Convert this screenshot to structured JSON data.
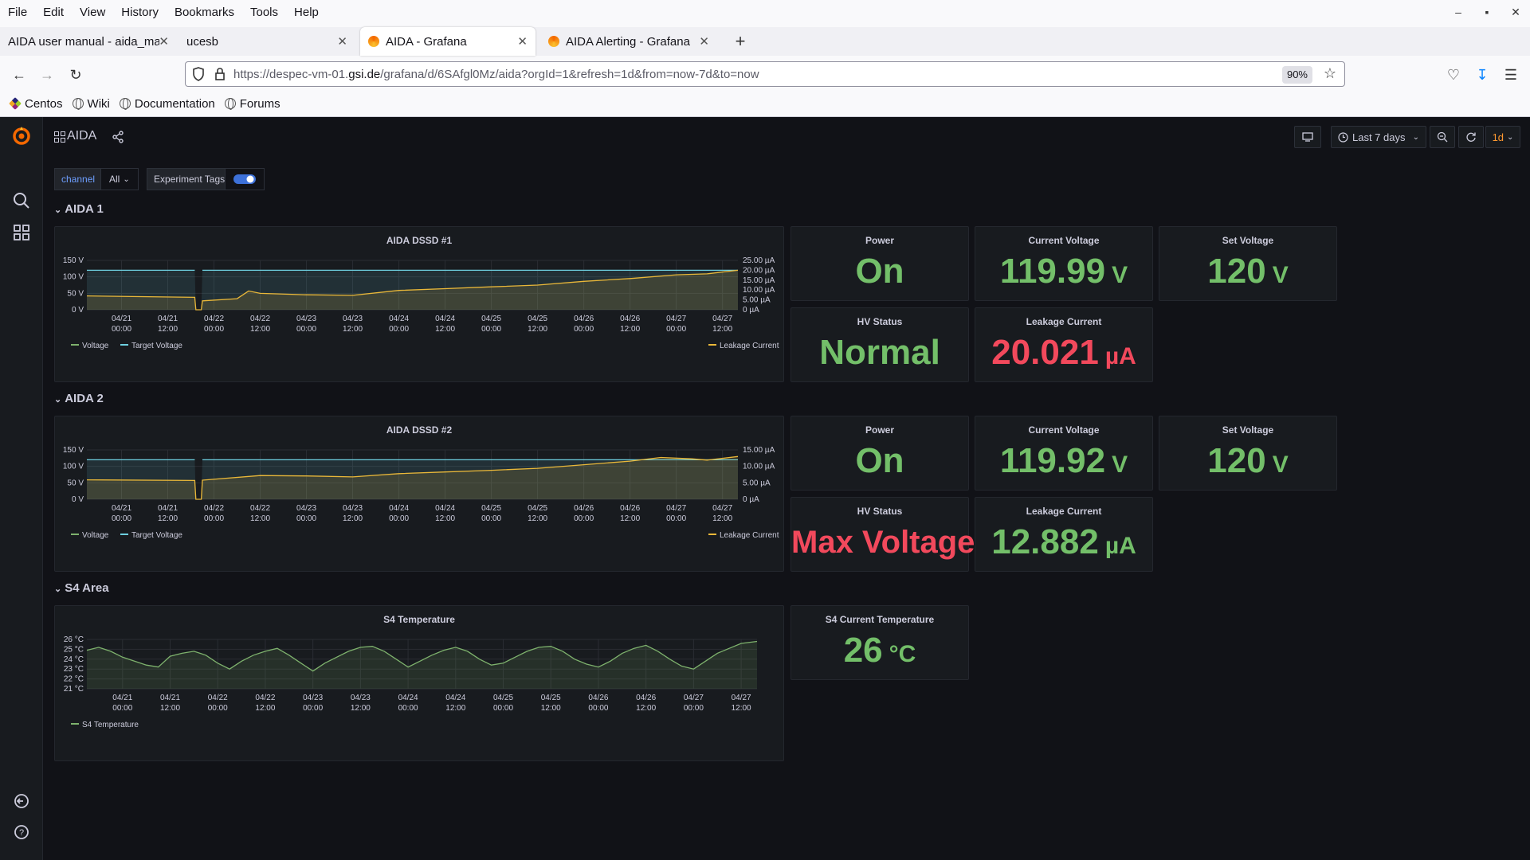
{
  "browser": {
    "menu": [
      "File",
      "Edit",
      "View",
      "History",
      "Bookmarks",
      "Tools",
      "Help"
    ],
    "tabs": [
      {
        "title": "AIDA user manual - aida_man",
        "active": false,
        "favicon": false
      },
      {
        "title": "ucesb",
        "active": false,
        "favicon": false
      },
      {
        "title": "AIDA - Grafana",
        "active": true,
        "favicon": true
      },
      {
        "title": "AIDA Alerting - Grafana",
        "active": false,
        "favicon": true
      }
    ],
    "url_prefix": "https://despec-vm-01.",
    "url_domain": "gsi.de",
    "url_suffix": "/grafana/d/6SAfgl0Mz/aida?orgId=1&refresh=1d&from=now-7d&to=now",
    "zoom": "90%",
    "bookmarks": [
      "Centos",
      "Wiki",
      "Documentation",
      "Forums"
    ]
  },
  "grafana": {
    "dashboard_title": "AIDA",
    "time_range": "Last 7 days",
    "refresh": "1d",
    "variables": {
      "channel_label": "channel",
      "channel_value": "All",
      "tags_label": "Experiment Tags",
      "tags_on": true
    },
    "colors": {
      "green": "#73bf69",
      "red": "#f2495c",
      "voltage": "#7eb26d",
      "target": "#6ed0e0",
      "leakage": "#eab839"
    },
    "rows": [
      {
        "title": "AIDA 1"
      },
      {
        "title": "AIDA 2"
      },
      {
        "title": "S4 Area"
      }
    ],
    "stats": {
      "aida1": {
        "power": {
          "title": "Power",
          "value": "On",
          "unit": "",
          "color": "green"
        },
        "current_voltage": {
          "title": "Current Voltage",
          "value": "119.99",
          "unit": "V",
          "color": "green"
        },
        "set_voltage": {
          "title": "Set Voltage",
          "value": "120",
          "unit": "V",
          "color": "green"
        },
        "hv_status": {
          "title": "HV Status",
          "value": "Normal",
          "unit": "",
          "color": "green"
        },
        "leakage": {
          "title": "Leakage Current",
          "value": "20.021",
          "unit": "µA",
          "color": "red"
        }
      },
      "aida2": {
        "power": {
          "title": "Power",
          "value": "On",
          "unit": "",
          "color": "green"
        },
        "current_voltage": {
          "title": "Current Voltage",
          "value": "119.92",
          "unit": "V",
          "color": "green"
        },
        "set_voltage": {
          "title": "Set Voltage",
          "value": "120",
          "unit": "V",
          "color": "green"
        },
        "hv_status": {
          "title": "HV Status",
          "value": "Max Voltage",
          "unit": "",
          "color": "red"
        },
        "leakage": {
          "title": "Leakage Current",
          "value": "12.882",
          "unit": "µA",
          "color": "green"
        }
      },
      "s4": {
        "temperature": {
          "title": "S4 Current Temperature",
          "value": "26",
          "unit": "°C",
          "color": "green"
        }
      }
    }
  },
  "chart_data": [
    {
      "id": "dssd1",
      "type": "line",
      "title": "AIDA DSSD #1",
      "x_ticks": [
        [
          "04/21",
          "00:00"
        ],
        [
          "04/21",
          "12:00"
        ],
        [
          "04/22",
          "00:00"
        ],
        [
          "04/22",
          "12:00"
        ],
        [
          "04/23",
          "00:00"
        ],
        [
          "04/23",
          "12:00"
        ],
        [
          "04/24",
          "00:00"
        ],
        [
          "04/24",
          "12:00"
        ],
        [
          "04/25",
          "00:00"
        ],
        [
          "04/25",
          "12:00"
        ],
        [
          "04/26",
          "00:00"
        ],
        [
          "04/26",
          "12:00"
        ],
        [
          "04/27",
          "00:00"
        ],
        [
          "04/27",
          "12:00"
        ]
      ],
      "x_range_hours": [
        -9,
        160
      ],
      "y_left_ticks": [
        "0 V",
        "50 V",
        "100 V",
        "150 V"
      ],
      "y_left_range": [
        0,
        150
      ],
      "y_right_ticks": [
        "0 µA",
        "5.00 µA",
        "10.00 µA",
        "15.00 µA",
        "20.00 µA",
        "25.00 µA"
      ],
      "y_right_range": [
        0,
        25
      ],
      "legend_left": [
        "Voltage",
        "Target Voltage"
      ],
      "legend_right": [
        "Leakage Current"
      ],
      "target_segments": [
        [
          [
            -9,
            120
          ],
          [
            19,
            120
          ]
        ],
        [
          [
            21,
            120
          ],
          [
            160,
            120
          ]
        ]
      ],
      "voltage": [
        [
          -9,
          120
        ],
        [
          19,
          120
        ],
        [
          19.3,
          0
        ],
        [
          20.7,
          0
        ],
        [
          21,
          120
        ],
        [
          160,
          120
        ]
      ],
      "leakage": [
        [
          -9,
          7.0
        ],
        [
          19,
          6.3
        ],
        [
          19.3,
          0
        ],
        [
          20.7,
          0
        ],
        [
          21,
          4.5
        ],
        [
          30,
          5.6
        ],
        [
          33,
          9.5
        ],
        [
          36,
          8.3
        ],
        [
          48,
          7.6
        ],
        [
          60,
          7.3
        ],
        [
          72,
          9.8
        ],
        [
          84,
          10.7
        ],
        [
          96,
          11.6
        ],
        [
          108,
          12.5
        ],
        [
          120,
          14.4
        ],
        [
          132,
          15.8
        ],
        [
          144,
          17.7
        ],
        [
          152,
          18.2
        ],
        [
          160,
          20.0
        ]
      ]
    },
    {
      "id": "dssd2",
      "type": "line",
      "title": "AIDA DSSD #2",
      "x_ticks": [
        [
          "04/21",
          "00:00"
        ],
        [
          "04/21",
          "12:00"
        ],
        [
          "04/22",
          "00:00"
        ],
        [
          "04/22",
          "12:00"
        ],
        [
          "04/23",
          "00:00"
        ],
        [
          "04/23",
          "12:00"
        ],
        [
          "04/24",
          "00:00"
        ],
        [
          "04/24",
          "12:00"
        ],
        [
          "04/25",
          "00:00"
        ],
        [
          "04/25",
          "12:00"
        ],
        [
          "04/26",
          "00:00"
        ],
        [
          "04/26",
          "12:00"
        ],
        [
          "04/27",
          "00:00"
        ],
        [
          "04/27",
          "12:00"
        ]
      ],
      "x_range_hours": [
        -9,
        160
      ],
      "y_left_ticks": [
        "0 V",
        "50 V",
        "100 V",
        "150 V"
      ],
      "y_left_range": [
        0,
        150
      ],
      "y_right_ticks": [
        "0 µA",
        "5.00 µA",
        "10.00 µA",
        "15.00 µA"
      ],
      "y_right_range": [
        0,
        15
      ],
      "legend_left": [
        "Voltage",
        "Target Voltage"
      ],
      "legend_right": [
        "Leakage Current"
      ],
      "target_segments": [
        [
          [
            -9,
            120
          ],
          [
            19,
            120
          ]
        ],
        [
          [
            21,
            120
          ],
          [
            160,
            120
          ]
        ]
      ],
      "voltage": [
        [
          -9,
          120
        ],
        [
          19,
          120
        ],
        [
          19.3,
          0
        ],
        [
          20.7,
          0
        ],
        [
          21,
          120
        ],
        [
          160,
          120
        ]
      ],
      "leakage": [
        [
          -9,
          5.9
        ],
        [
          19,
          5.7
        ],
        [
          19.3,
          0
        ],
        [
          20.7,
          0
        ],
        [
          21,
          5.8
        ],
        [
          36,
          7.2
        ],
        [
          48,
          7.1
        ],
        [
          60,
          6.8
        ],
        [
          72,
          7.8
        ],
        [
          84,
          8.3
        ],
        [
          96,
          8.8
        ],
        [
          108,
          9.4
        ],
        [
          120,
          10.5
        ],
        [
          132,
          11.6
        ],
        [
          140,
          12.7
        ],
        [
          148,
          12.3
        ],
        [
          152,
          11.9
        ],
        [
          160,
          13.0
        ]
      ]
    },
    {
      "id": "s4",
      "type": "line",
      "title": "S4 Temperature",
      "x_ticks": [
        [
          "04/21",
          "00:00"
        ],
        [
          "04/21",
          "12:00"
        ],
        [
          "04/22",
          "00:00"
        ],
        [
          "04/22",
          "12:00"
        ],
        [
          "04/23",
          "00:00"
        ],
        [
          "04/23",
          "12:00"
        ],
        [
          "04/24",
          "00:00"
        ],
        [
          "04/24",
          "12:00"
        ],
        [
          "04/25",
          "00:00"
        ],
        [
          "04/25",
          "12:00"
        ],
        [
          "04/26",
          "00:00"
        ],
        [
          "04/26",
          "12:00"
        ],
        [
          "04/27",
          "00:00"
        ],
        [
          "04/27",
          "12:00"
        ]
      ],
      "x_range_hours": [
        -9,
        160
      ],
      "y_ticks": [
        "21 °C",
        "22 °C",
        "23 °C",
        "24 °C",
        "25 °C",
        "26 °C"
      ],
      "y_range": [
        21,
        26
      ],
      "legend": [
        "S4 Temperature"
      ],
      "temperature": [
        [
          -9,
          24.9
        ],
        [
          -6,
          25.2
        ],
        [
          -3,
          24.8
        ],
        [
          0,
          24.2
        ],
        [
          3,
          23.8
        ],
        [
          6,
          23.4
        ],
        [
          9,
          23.2
        ],
        [
          12,
          24.3
        ],
        [
          15,
          24.6
        ],
        [
          18,
          24.8
        ],
        [
          21,
          24.4
        ],
        [
          24,
          23.6
        ],
        [
          27,
          23.0
        ],
        [
          30,
          23.8
        ],
        [
          33,
          24.4
        ],
        [
          36,
          24.8
        ],
        [
          39,
          25.1
        ],
        [
          42,
          24.4
        ],
        [
          45,
          23.6
        ],
        [
          48,
          22.8
        ],
        [
          51,
          23.6
        ],
        [
          54,
          24.2
        ],
        [
          57,
          24.8
        ],
        [
          60,
          25.2
        ],
        [
          63,
          25.3
        ],
        [
          66,
          24.8
        ],
        [
          69,
          24.0
        ],
        [
          72,
          23.2
        ],
        [
          75,
          23.8
        ],
        [
          78,
          24.4
        ],
        [
          81,
          24.9
        ],
        [
          84,
          25.2
        ],
        [
          87,
          24.8
        ],
        [
          90,
          24.0
        ],
        [
          93,
          23.4
        ],
        [
          96,
          23.6
        ],
        [
          99,
          24.2
        ],
        [
          102,
          24.8
        ],
        [
          105,
          25.2
        ],
        [
          108,
          25.3
        ],
        [
          111,
          24.8
        ],
        [
          114,
          24.0
        ],
        [
          117,
          23.5
        ],
        [
          120,
          23.2
        ],
        [
          123,
          23.8
        ],
        [
          126,
          24.6
        ],
        [
          129,
          25.1
        ],
        [
          132,
          25.4
        ],
        [
          135,
          24.8
        ],
        [
          138,
          24.0
        ],
        [
          141,
          23.3
        ],
        [
          144,
          23.0
        ],
        [
          147,
          23.8
        ],
        [
          150,
          24.6
        ],
        [
          153,
          25.1
        ],
        [
          156,
          25.6
        ],
        [
          160,
          25.8
        ]
      ]
    }
  ]
}
